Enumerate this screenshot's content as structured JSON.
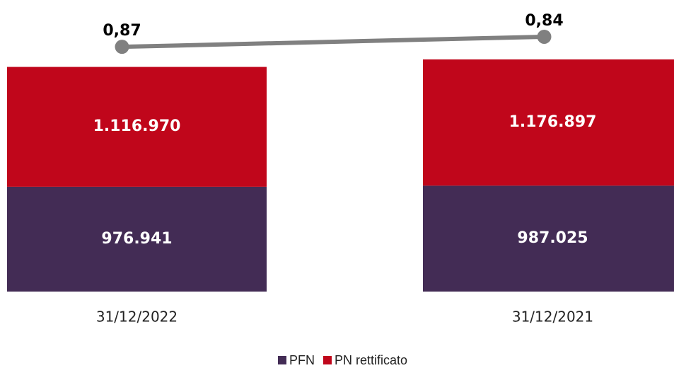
{
  "chart_data": {
    "type": "bar",
    "stacked": true,
    "categories": [
      "31/12/2022",
      "31/12/2021"
    ],
    "series": [
      {
        "name": "PFN",
        "color": "#432c55",
        "values": [
          976941,
          987025
        ],
        "value_labels": [
          "976.941",
          "987.025"
        ]
      },
      {
        "name": "PN rettificato",
        "color": "#c0061b",
        "values": [
          1116970,
          1176897
        ],
        "value_labels": [
          "1.116.970",
          "1.176.897"
        ]
      },
      {
        "type": "line",
        "axis": "y2",
        "color": "#808080",
        "values": [
          0.87,
          0.84
        ],
        "value_labels": [
          "0,87",
          "0,84"
        ]
      }
    ],
    "ylim": [
      0,
      2500000
    ],
    "y2lim": [
      1.6,
      0.8
    ],
    "legend": "bottom"
  }
}
